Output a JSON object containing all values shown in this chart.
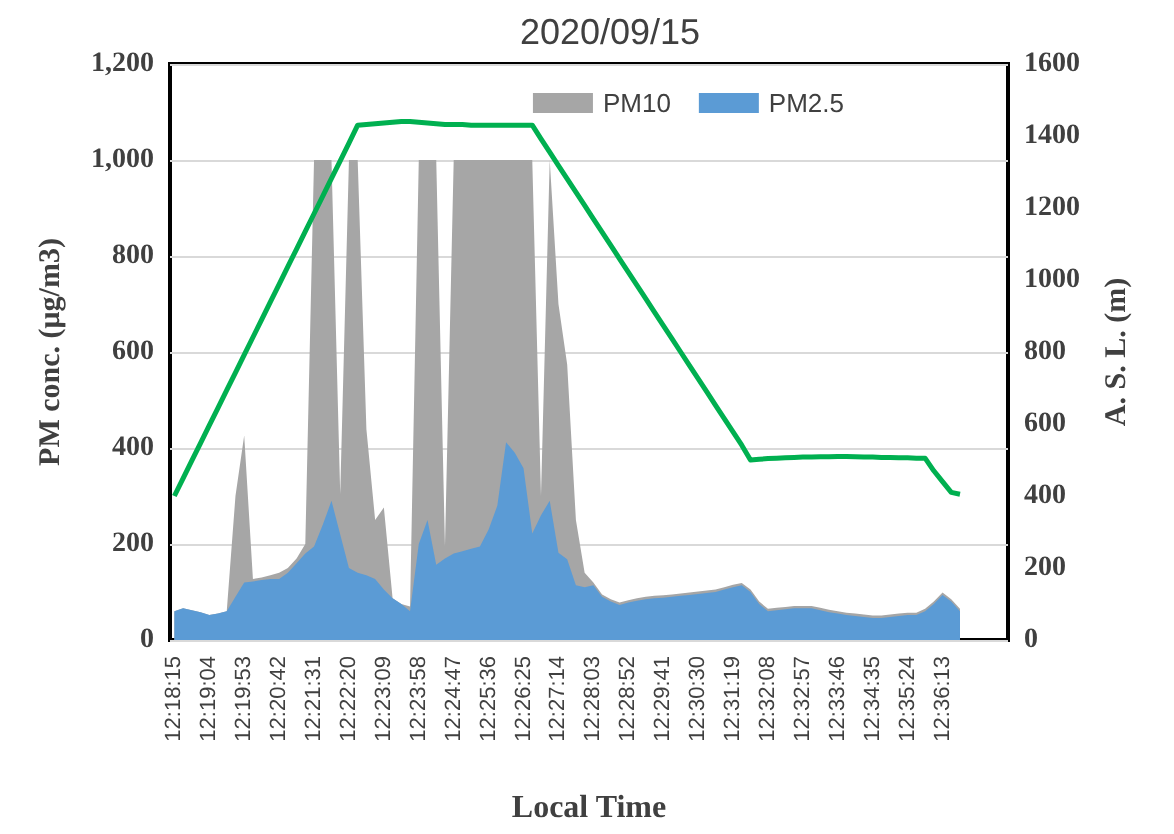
{
  "chart_data": {
    "type": "area",
    "title": "2020/09/15",
    "xlabel": "Local Time",
    "ylabel": "PM conc. (μg/m3)",
    "y2label": "A. S. L. (m)",
    "categories": [
      "12:18:15",
      null,
      null,
      null,
      "12:19:04",
      null,
      null,
      null,
      "12:19:53",
      null,
      null,
      null,
      "12:20:42",
      null,
      null,
      null,
      "12:21:31",
      null,
      null,
      null,
      "12:22:20",
      null,
      null,
      null,
      "12:23:09",
      null,
      null,
      null,
      "12:23:58",
      null,
      null,
      null,
      "12:24:47",
      null,
      null,
      null,
      "12:25:36",
      null,
      null,
      null,
      "12:26:25",
      null,
      null,
      null,
      "12:27:14",
      null,
      null,
      null,
      "12:28:03",
      null,
      null,
      null,
      "12:28:52",
      null,
      null,
      null,
      "12:29:41",
      null,
      null,
      null,
      "12:30:30",
      null,
      null,
      null,
      "12:31:19",
      null,
      null,
      null,
      "12:32:08",
      null,
      null,
      null,
      "12:32:57",
      null,
      null,
      null,
      "12:33:46",
      null,
      null,
      null,
      "12:34:35",
      null,
      null,
      null,
      "12:35:24",
      null,
      null,
      null,
      "12:36:13",
      null,
      null,
      null,
      null,
      null,
      null,
      null
    ],
    "series": [
      {
        "name": "PM10",
        "color": "#a6a6a6",
        "values": [
          60,
          66,
          62,
          58,
          52,
          55,
          60,
          300,
          426,
          127,
          130,
          135,
          140,
          150,
          170,
          200,
          1000,
          1000,
          1000,
          304,
          1000,
          1000,
          439,
          250,
          276,
          87,
          75,
          70,
          1000,
          1000,
          1000,
          195,
          1000,
          1000,
          1000,
          1000,
          1000,
          1000,
          1000,
          1000,
          1000,
          1000,
          300,
          1000,
          700,
          574,
          250,
          140,
          120,
          95,
          85,
          78,
          83,
          87,
          90,
          92,
          93,
          95,
          97,
          99,
          101,
          103,
          105,
          110,
          115,
          119,
          105,
          80,
          65,
          67,
          69,
          71,
          71,
          71,
          67,
          63,
          60,
          57,
          55,
          53,
          51,
          51,
          53,
          55,
          57,
          57,
          65,
          80,
          99,
          85,
          65,
          null,
          null,
          null,
          null,
          null
        ]
      },
      {
        "name": "PM2.5",
        "color": "#5b9bd5",
        "values": [
          60,
          66,
          62,
          58,
          52,
          55,
          60,
          90,
          120,
          122,
          125,
          127,
          127,
          140,
          160,
          180,
          195,
          240,
          290,
          220,
          150,
          140,
          135,
          127,
          105,
          87,
          75,
          60,
          200,
          250,
          157,
          170,
          180,
          185,
          190,
          195,
          230,
          280,
          412,
          390,
          358,
          222,
          260,
          290,
          182,
          168,
          114,
          110,
          114,
          90,
          80,
          73,
          78,
          82,
          85,
          87,
          88,
          90,
          92,
          94,
          96,
          98,
          100,
          105,
          110,
          114,
          100,
          75,
          60,
          62,
          64,
          66,
          66,
          66,
          62,
          58,
          55,
          52,
          50,
          48,
          46,
          46,
          48,
          50,
          52,
          52,
          60,
          75,
          94,
          80,
          60,
          null,
          null,
          null,
          null,
          null
        ]
      },
      {
        "type": "line",
        "axis": "y2",
        "color": "#00b050",
        "values": [
          400,
          449,
          498,
          547,
          596,
          645,
          694,
          743,
          792,
          841,
          890,
          939,
          988,
          1037,
          1086,
          1135,
          1184,
          1233,
          1282,
          1331,
          1380,
          1430,
          1432,
          1434,
          1436,
          1438,
          1440,
          1440,
          1438,
          1436,
          1434,
          1432,
          1432,
          1432,
          1430,
          1430,
          1430,
          1430,
          1430,
          1430,
          1430,
          1430,
          1392,
          1355,
          1318,
          1281,
          1244,
          1207,
          1170,
          1133,
          1096,
          1059,
          1022,
          985,
          948,
          911,
          874,
          837,
          800,
          763,
          726,
          689,
          652,
          615,
          578,
          541,
          500,
          502,
          504,
          505,
          506,
          507,
          508,
          508,
          509,
          509,
          510,
          510,
          509,
          508,
          508,
          507,
          507,
          506,
          506,
          505,
          505,
          470,
          440,
          410,
          405,
          null,
          null,
          null,
          null,
          null
        ]
      }
    ],
    "ylim": [
      0,
      1200
    ],
    "yticks": [
      0,
      200,
      400,
      600,
      800,
      {
        "value": 1000,
        "label": "1,000"
      },
      {
        "value": 1200,
        "label": "1,200"
      }
    ],
    "y2lim": [
      0,
      1600
    ],
    "y2ticks": [
      0,
      200,
      400,
      600,
      800,
      1000,
      1200,
      1400,
      1600
    ],
    "grid": "y",
    "legend": "top right",
    "marker": "none"
  }
}
